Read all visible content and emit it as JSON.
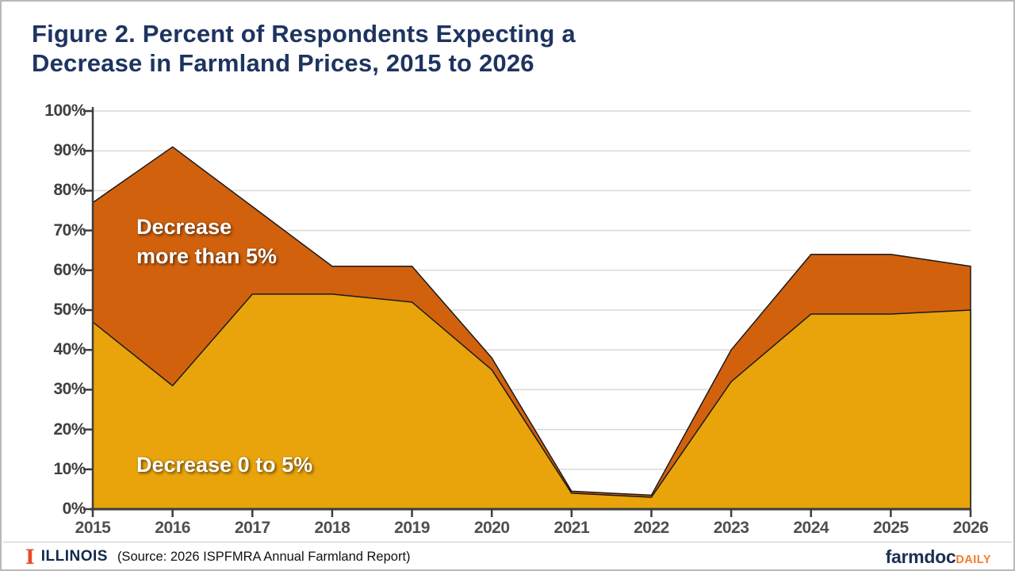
{
  "header": {
    "title_line1": "Figure 2. Percent of Respondents Expecting a",
    "title_line2": "Decrease in Farmland Prices, 2015 to 2026"
  },
  "footer": {
    "block_i": "I",
    "illinois": "ILLINOIS",
    "source": "(Source: 2026 ISPFMRA Annual Farmland Report)",
    "farmdoc": "farmdoc",
    "daily": "DAILY"
  },
  "colors": {
    "title": "#1E3460",
    "grid": "#D9D9D9",
    "axis": "#3d3d3d",
    "outline": "#1a1a1a",
    "series_0to5": "#E8A40A",
    "series_more5": "#D2610D",
    "illinois_navy": "#13294B",
    "illinois_orange": "#E84A27",
    "farmdoc_orange": "#F47C26"
  },
  "chart_data": {
    "type": "area",
    "stacked": true,
    "title": "Figure 2. Percent of Respondents Expecting a Decrease in Farmland Prices, 2015 to 2026",
    "x": [
      "2015",
      "2016",
      "2017",
      "2018",
      "2019",
      "2020",
      "2021",
      "2022",
      "2023",
      "2024",
      "2025",
      "2026"
    ],
    "series": [
      {
        "name": "Decrease 0 to 5%",
        "color": "#E8A40A",
        "values": [
          47,
          31,
          54,
          54,
          52,
          35,
          4,
          3,
          32,
          49,
          49,
          50
        ]
      },
      {
        "name": "Decrease more than 5%",
        "color": "#D2610D",
        "values": [
          30,
          60,
          22,
          7,
          9,
          3,
          0.5,
          0.5,
          8,
          15,
          15,
          11
        ]
      }
    ],
    "stacked_totals": [
      77,
      91,
      76,
      61,
      61,
      38,
      4.5,
      3.5,
      40,
      64,
      64,
      61
    ],
    "xlabel": "",
    "ylabel": "",
    "ylim": [
      0,
      100
    ],
    "yticks": [
      "0%",
      "10%",
      "20%",
      "30%",
      "40%",
      "50%",
      "60%",
      "70%",
      "80%",
      "90%",
      "100%"
    ],
    "grid": "horizontal",
    "legend_position": "none",
    "annotations": [
      {
        "lines": [
          "Decrease",
          "more than 5%"
        ],
        "target_series": "Decrease more than 5%"
      },
      {
        "lines": [
          "Decrease 0 to 5%"
        ],
        "target_series": "Decrease 0 to 5%"
      }
    ]
  }
}
